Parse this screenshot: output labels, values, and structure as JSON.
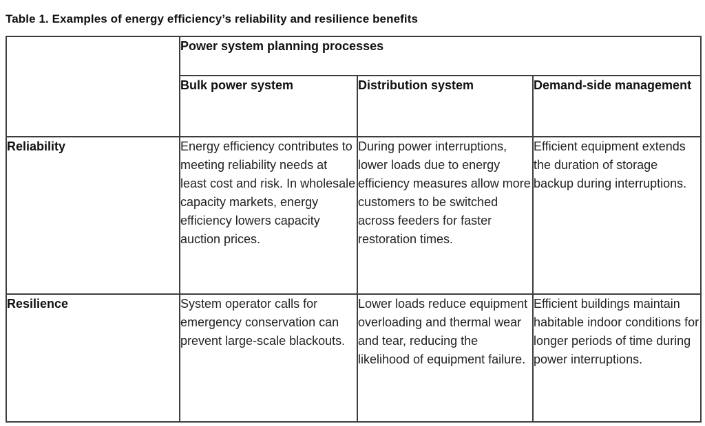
{
  "title": "Table 1. Examples of energy efficiency’s reliability and resilience benefits",
  "table": {
    "group_header": "Power system planning processes",
    "columns": [
      "Bulk power system",
      "Distribution system",
      "Demand-side management"
    ],
    "rows": [
      {
        "label": "Reliability",
        "cells": [
          "Energy efficiency contributes to meeting reliability needs at least cost and risk. In wholesale capacity markets, energy efficiency lowers capacity auction prices.",
          "During power interruptions, lower loads due to energy efficiency measures allow more customers to be switched across feeders for faster restoration times.",
          "Efficient equipment extends the duration of storage backup during interruptions."
        ]
      },
      {
        "label": "Resilience",
        "cells": [
          "System operator calls for emergency conservation can prevent large-scale blackouts.",
          "Lower loads reduce equipment overloading and thermal wear and tear, reducing the likelihood of equipment failure.",
          "Efficient buildings maintain habitable indoor conditions for longer periods of time during power interruptions."
        ]
      }
    ]
  }
}
